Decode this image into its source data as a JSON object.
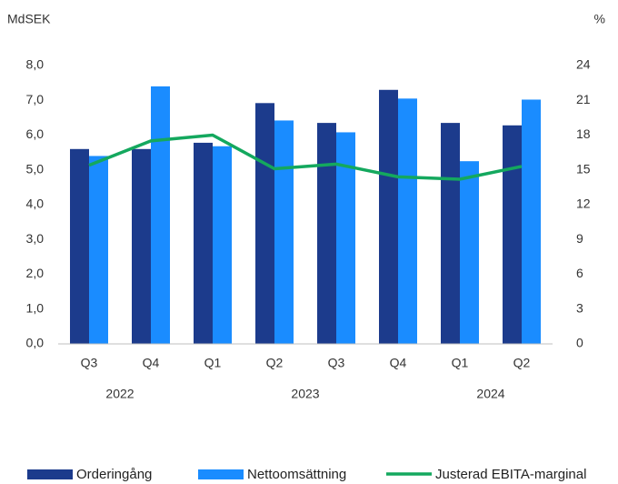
{
  "chart_data": {
    "type": "bar_line",
    "y_label": "MdSEK",
    "y2_label": "%",
    "categories": [
      "Q3",
      "Q4",
      "Q1",
      "Q2",
      "Q3",
      "Q4",
      "Q1",
      "Q2"
    ],
    "groups": [
      {
        "label": "2022",
        "count": 2
      },
      {
        "label": "2023",
        "count": 4
      },
      {
        "label": "2024",
        "count": 2
      }
    ],
    "series": [
      {
        "name": "Orderingång",
        "type": "bar",
        "color": "#1c3b8c",
        "values": [
          5.6,
          5.6,
          5.78,
          6.92,
          6.35,
          7.3,
          6.35,
          6.28
        ]
      },
      {
        "name": "Nettoomsättning",
        "type": "bar",
        "color": "#1a8cff",
        "values": [
          5.4,
          7.4,
          5.68,
          6.42,
          6.08,
          7.05,
          5.25,
          7.02
        ]
      },
      {
        "name": "Justerad EBITA-marginal",
        "type": "line",
        "axis": "y2",
        "color": "#14a85e",
        "values": [
          15.4,
          17.5,
          18.0,
          15.1,
          15.5,
          14.4,
          14.2,
          15.3
        ]
      }
    ],
    "ylim": [
      0,
      8
    ],
    "yticks": [
      {
        "value": 0,
        "label": "0,0"
      },
      {
        "value": 1,
        "label": "1,0"
      },
      {
        "value": 2,
        "label": "2,0"
      },
      {
        "value": 3,
        "label": "3,0"
      },
      {
        "value": 4,
        "label": "4,0"
      },
      {
        "value": 5,
        "label": "5,0"
      },
      {
        "value": 6,
        "label": "6,0"
      },
      {
        "value": 7,
        "label": "7,0"
      },
      {
        "value": 8,
        "label": "8,0"
      }
    ],
    "y2lim": [
      0,
      24
    ],
    "y2ticks": [
      0,
      3,
      6,
      9,
      12,
      15,
      18,
      21,
      24
    ],
    "legend": "bottom"
  }
}
